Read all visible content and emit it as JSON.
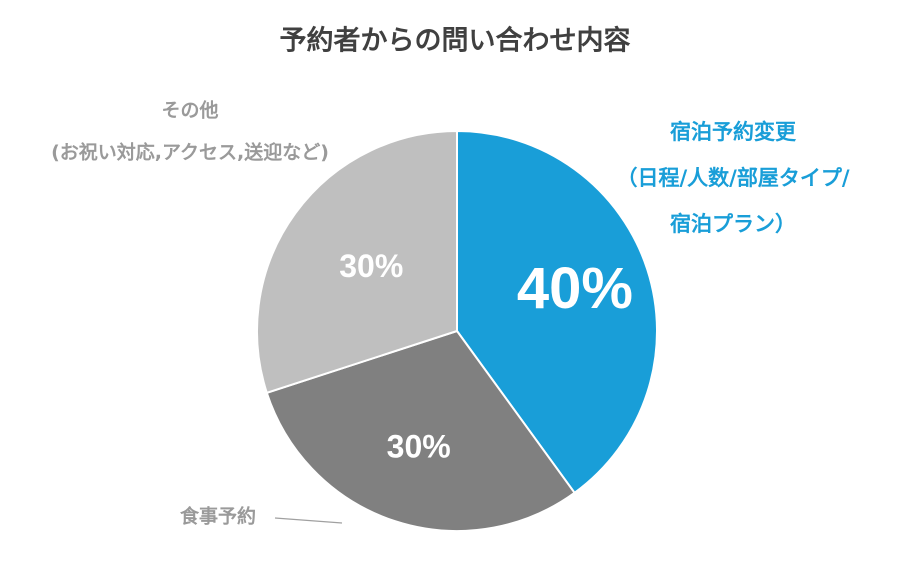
{
  "chart_data": {
    "type": "pie",
    "title": "予約者からの問い合わせ内容",
    "categories": [
      [
        "宿泊予約変更",
        "（日程/人数/部屋タイプ/",
        "宿泊プラン）"
      ],
      [
        "食事予約"
      ],
      [
        "その他",
        "(お祝い対応,アクセス,送迎など)"
      ]
    ],
    "values": [
      40,
      30,
      30
    ],
    "value_labels": [
      "40%",
      "30%",
      "30%"
    ],
    "colors": [
      "#199ed8",
      "#808080",
      "#bfbfbf"
    ]
  }
}
